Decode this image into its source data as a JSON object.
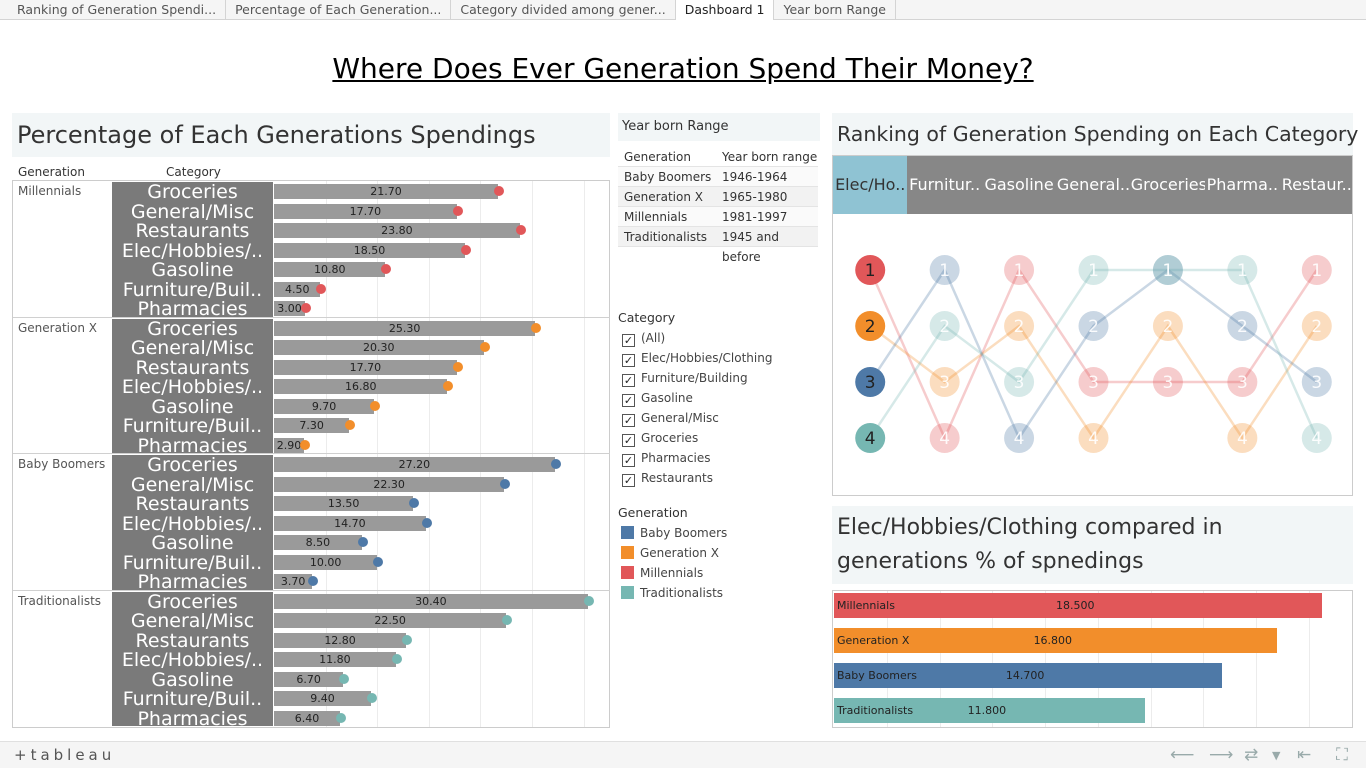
{
  "tabs": [
    "Ranking of Generation Spendi...",
    "Percentage of Each Generation...",
    "Category divided among gener...",
    "Dashboard 1",
    "Year born Range"
  ],
  "active_tab": 3,
  "main_title": "Where Does Ever Generation Spend Their Money?",
  "colors": {
    "Millennials": "#e15759",
    "Generation X": "#f28e2b",
    "Baby Boomers": "#4e79a7",
    "Traditionalists": "#76b7b2"
  },
  "left_panel": {
    "title": "Percentage of Each Generations Spendings",
    "col_generation": "Generation",
    "col_category": "Category",
    "categories": [
      "Groceries",
      "General/Misc",
      "Restaurants",
      "Elec/Hobbies/..",
      "Gasoline",
      "Furniture/Buil..",
      "Pharmacies"
    ],
    "axis_max": 31
  },
  "chart_data": {
    "type": "bar",
    "title": "Percentage of Each Generations Spendings",
    "groups": [
      {
        "generation": "Millennials",
        "values": [
          21.7,
          17.7,
          23.8,
          18.5,
          10.8,
          4.5,
          3.0
        ],
        "labels": [
          "21.70",
          "17.70",
          "23.80",
          "18.50",
          "10.80",
          "4.50",
          "3.00"
        ]
      },
      {
        "generation": "Generation X",
        "values": [
          25.3,
          20.3,
          17.7,
          16.8,
          9.7,
          7.3,
          2.9
        ],
        "labels": [
          "25.30",
          "20.30",
          "17.70",
          "16.80",
          "9.70",
          "7.30",
          "2.90"
        ]
      },
      {
        "generation": "Baby Boomers",
        "values": [
          27.2,
          22.3,
          13.5,
          14.7,
          8.5,
          10.0,
          3.7
        ],
        "labels": [
          "27.20",
          "22.30",
          "13.50",
          "14.70",
          "8.50",
          "10.00",
          "3.70"
        ]
      },
      {
        "generation": "Traditionalists",
        "values": [
          30.4,
          22.5,
          12.8,
          11.8,
          6.7,
          9.4,
          6.4
        ],
        "labels": [
          "30.40",
          "22.50",
          "12.80",
          "11.80",
          "6.70",
          "9.40",
          "6.40"
        ]
      }
    ]
  },
  "year_range": {
    "title": "Year born Range",
    "headers": [
      "Generation",
      "Year born range"
    ],
    "rows": [
      [
        "Baby Boomers",
        "1946-1964"
      ],
      [
        "Generation X",
        "1965-1980"
      ],
      [
        "Millennials",
        "1981-1997"
      ],
      [
        "Traditionalists",
        "1945 and before"
      ]
    ]
  },
  "category_filter": {
    "title": "Category",
    "items": [
      "(All)",
      "Elec/Hobbies/Clothing",
      "Furniture/Building",
      "Gasoline",
      "General/Misc",
      "Groceries",
      "Pharmacies",
      "Restaurants"
    ]
  },
  "generation_legend": {
    "title": "Generation",
    "items": [
      "Baby Boomers",
      "Generation X",
      "Millennials",
      "Traditionalists"
    ]
  },
  "ranking": {
    "title": "Ranking of Generation Spending on Each Category",
    "columns": [
      "Elec/Ho..",
      "Furnitur..",
      "Gasoline",
      "General..",
      "Groceries",
      "Pharma..",
      "Restaur.."
    ],
    "selected_column": 0,
    "ranks": [
      1,
      2,
      3,
      4
    ],
    "series": [
      {
        "generation": "Millennials",
        "positions": [
          1,
          4,
          1,
          3,
          3,
          3,
          1
        ]
      },
      {
        "generation": "Generation X",
        "positions": [
          2,
          3,
          2,
          4,
          2,
          4,
          2
        ]
      },
      {
        "generation": "Baby Boomers",
        "positions": [
          3,
          1,
          4,
          2,
          1,
          2,
          3
        ]
      },
      {
        "generation": "Traditionalists",
        "positions": [
          4,
          2,
          3,
          1,
          1,
          1,
          4
        ]
      }
    ]
  },
  "elec": {
    "title_line1": "Elec/Hobbies/Clothing compared in",
    "title_line2": "generations % of spnedings",
    "axis_max": 19.6,
    "bars": [
      {
        "generation": "Millennials",
        "value": 18.5,
        "label": "18.500"
      },
      {
        "generation": "Generation X",
        "value": 16.8,
        "label": "16.800"
      },
      {
        "generation": "Baby Boomers",
        "value": 14.7,
        "label": "14.700"
      },
      {
        "generation": "Traditionalists",
        "value": 11.8,
        "label": "11.800"
      }
    ]
  },
  "footer": {
    "logo": "+tableau"
  }
}
